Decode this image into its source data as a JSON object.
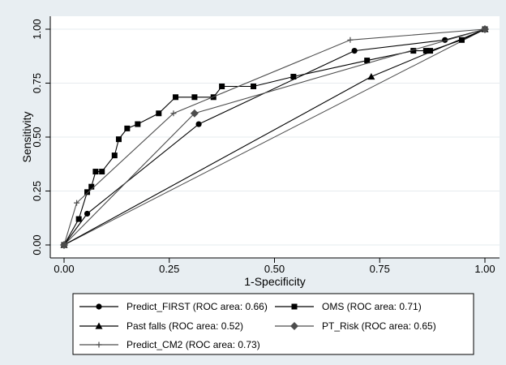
{
  "chart_data": {
    "type": "line",
    "xlabel": "1-Specificity",
    "ylabel": "Sensitivity",
    "xlim": [
      0,
      1
    ],
    "ylim": [
      0,
      1
    ],
    "x_ticks": [
      "0.00",
      "0.25",
      "0.50",
      "0.75",
      "1.00"
    ],
    "y_ticks": [
      "0.00",
      "0.25",
      "0.50",
      "0.75",
      "1.00"
    ],
    "grid": "horizontal",
    "legend_position": "bottom",
    "colors": {
      "outer_background": "#e8eef2",
      "plot_background": "#ffffff",
      "gridline": "#e6ebef",
      "series_dark": "#000000",
      "series_gray": "#4d4d4d",
      "diagonal": "#4d4d4d"
    },
    "series": [
      {
        "name": "Predict_FIRST (ROC area: 0.66)",
        "marker": "circle",
        "color": "#000000",
        "x": [
          0.0,
          0.055,
          0.32,
          0.69,
          0.905,
          1.0
        ],
        "y": [
          0.0,
          0.145,
          0.56,
          0.9,
          0.95,
          1.0
        ]
      },
      {
        "name": "OMS (ROC area: 0.71)",
        "marker": "square",
        "color": "#000000",
        "x": [
          0.0,
          0.035,
          0.055,
          0.065,
          0.075,
          0.09,
          0.12,
          0.13,
          0.15,
          0.175,
          0.225,
          0.265,
          0.31,
          0.355,
          0.375,
          0.45,
          0.545,
          0.72,
          0.83,
          0.86,
          0.87,
          0.945,
          1.0
        ],
        "y": [
          0.0,
          0.12,
          0.245,
          0.27,
          0.34,
          0.34,
          0.415,
          0.49,
          0.54,
          0.56,
          0.61,
          0.685,
          0.685,
          0.685,
          0.735,
          0.735,
          0.78,
          0.855,
          0.9,
          0.9,
          0.9,
          0.95,
          1.0
        ]
      },
      {
        "name": "Past falls (ROC area: 0.52)",
        "marker": "triangle",
        "color": "#000000",
        "x": [
          0.0,
          0.73,
          1.0
        ],
        "y": [
          0.0,
          0.78,
          1.0
        ]
      },
      {
        "name": "PT_Risk (ROC area: 0.65)",
        "marker": "diamond",
        "color": "#4d4d4d",
        "x": [
          0.0,
          0.31,
          1.0
        ],
        "y": [
          0.0,
          0.61,
          1.0
        ]
      },
      {
        "name": "Predict_CM2 (ROC area: 0.73)",
        "marker": "plus",
        "color": "#4d4d4d",
        "x": [
          0.0,
          0.03,
          0.26,
          0.68,
          1.0
        ],
        "y": [
          0.0,
          0.195,
          0.61,
          0.95,
          1.0
        ]
      }
    ],
    "reference_line": {
      "x": [
        0,
        1
      ],
      "y": [
        0,
        1
      ]
    }
  }
}
